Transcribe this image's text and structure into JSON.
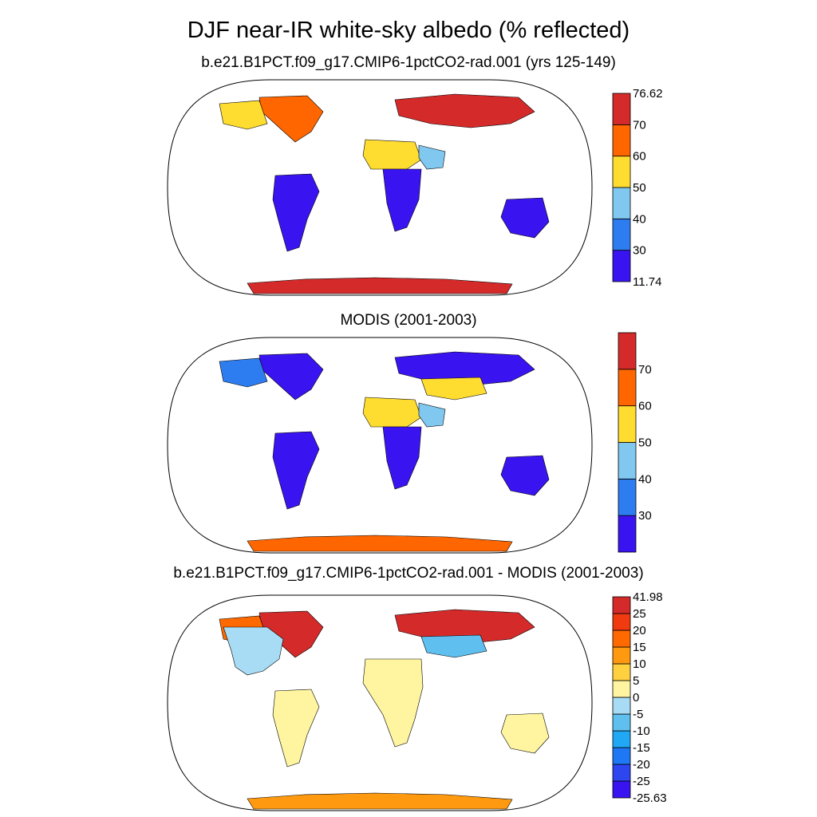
{
  "main_title": "DJF near-IR white-sky albedo (% reflected)",
  "chart_data": [
    {
      "type": "heatmap",
      "title": "b.e21.B1PCT.f09_g17.CMIP6-1pctCO2-rad.001 (yrs 125-149)",
      "projection": "Robinson",
      "colorbar": {
        "colors": [
          "#3A14F0",
          "#2E7DF0",
          "#80C8F0",
          "#FFDC30",
          "#FF6600",
          "#D42A2A"
        ],
        "labels": [
          "11.74",
          "30",
          "40",
          "50",
          "60",
          "70",
          "76.62"
        ],
        "min": 11.74,
        "max": 76.62
      },
      "regions": [
        {
          "region": "Antarctica",
          "class": 5
        },
        {
          "region": "Greenland",
          "class": 4
        },
        {
          "region": "Siberia",
          "class": 5
        },
        {
          "region": "Northern Canada",
          "class": 3
        },
        {
          "region": "Sahara",
          "class": 3
        },
        {
          "region": "Arabia",
          "class": 2
        },
        {
          "region": "South America",
          "class": 0
        },
        {
          "region": "Central Africa",
          "class": 0
        },
        {
          "region": "Australia",
          "class": 0
        }
      ]
    },
    {
      "type": "heatmap",
      "title": "MODIS (2001-2003)",
      "projection": "Robinson",
      "colorbar": {
        "colors": [
          "#3A14F0",
          "#2E7DF0",
          "#80C8F0",
          "#FFDC30",
          "#FF6600",
          "#D42A2A"
        ],
        "labels": [
          "",
          "30",
          "40",
          "50",
          "60",
          "70",
          ""
        ]
      },
      "regions": [
        {
          "region": "Antarctica",
          "class": 4
        },
        {
          "region": "Greenland",
          "class": 0
        },
        {
          "region": "Siberia",
          "class": 0
        },
        {
          "region": "Northern Canada",
          "class": 1
        },
        {
          "region": "Sahara",
          "class": 3
        },
        {
          "region": "Arabia",
          "class": 2
        },
        {
          "region": "Central Asia",
          "class": 3
        },
        {
          "region": "South America",
          "class": 0
        },
        {
          "region": "Central Africa",
          "class": 0
        },
        {
          "region": "Australia",
          "class": 0
        }
      ]
    },
    {
      "type": "heatmap",
      "title": "b.e21.B1PCT.f09_g17.CMIP6-1pctCO2-rad.001 - MODIS (2001-2003)",
      "projection": "Robinson",
      "colorbar": {
        "colors": [
          "#3A14F0",
          "#2E46F0",
          "#1E78F5",
          "#20A8F5",
          "#5FC0F0",
          "#A8DCF5",
          "#FFF5A0",
          "#FFD040",
          "#FF9A10",
          "#FF6A00",
          "#F03A10",
          "#D42A2A"
        ],
        "labels": [
          "-25.63",
          "-25",
          "-20",
          "-15",
          "-10",
          "-5",
          "0",
          "5",
          "10",
          "15",
          "20",
          "25",
          "41.98"
        ],
        "min": -25.63,
        "max": 41.98
      },
      "regions": [
        {
          "region": "Antarctica",
          "class": 8
        },
        {
          "region": "Greenland",
          "class": 11
        },
        {
          "region": "Siberia",
          "class": 11
        },
        {
          "region": "Northern Canada",
          "class": 9
        },
        {
          "region": "Central Asia",
          "class": 4
        },
        {
          "region": "North America",
          "class": 5
        },
        {
          "region": "South America",
          "class": 6
        },
        {
          "region": "Africa",
          "class": 6
        },
        {
          "region": "Australia",
          "class": 6
        }
      ]
    }
  ]
}
